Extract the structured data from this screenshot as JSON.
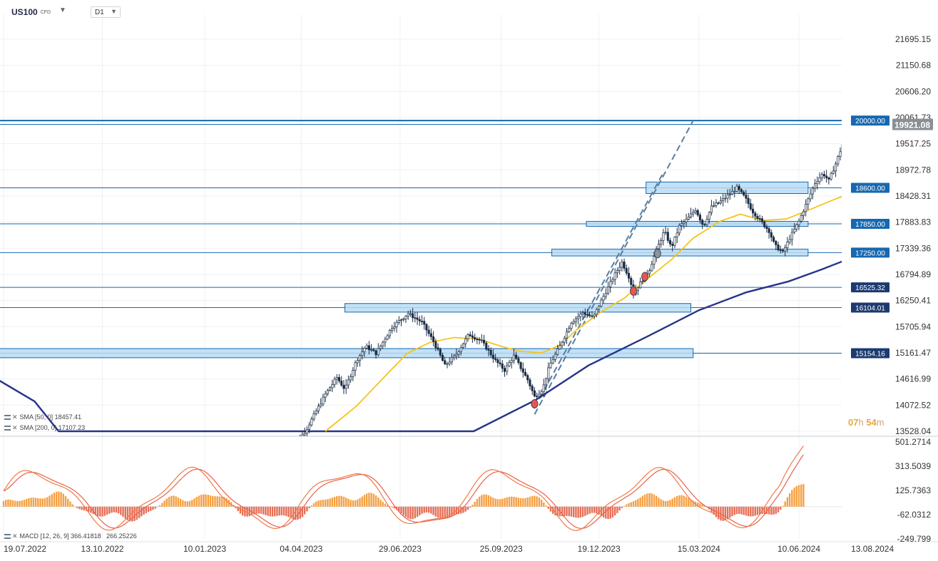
{
  "header": {
    "symbol": "US100",
    "symbol_type": "CFD",
    "timeframe": "D1"
  },
  "indicators": {
    "sma50": {
      "label": "SMA [50, 0]",
      "value": "18457.41",
      "color": "#f5c518"
    },
    "sma200": {
      "label": "SMA [200, 0]",
      "value": "17107.23",
      "color": "#26348b"
    },
    "macd": {
      "label": "MACD [12, 26, 9]",
      "value1": "366.41818",
      "value2": "266.25226"
    }
  },
  "countdown": {
    "hours": "07",
    "h_unit": "h",
    "minutes": "54",
    "m_unit": "m"
  },
  "colors": {
    "candle": "#1b2c44",
    "level_line": "#1668b0",
    "zone_fill": "#b9dcf4",
    "zone_stroke": "#1668b0",
    "tag_blue": "#1668b0",
    "tag_navy": "#1d3a70",
    "current_tag": "#8a8f96",
    "macd_pos": "#f5a043",
    "macd_neg": "#e66f56",
    "macd_line": "#f07a44",
    "signal_line": "#e86050",
    "channel": "#5a7ea0"
  },
  "chart_data": {
    "type": "candlestick",
    "instrument": "US100",
    "timeframe": "D1",
    "x_ticks": [
      "19.07.2022",
      "13.10.2022",
      "10.01.2023",
      "04.04.2023",
      "29.06.2023",
      "25.09.2023",
      "19.12.2023",
      "15.03.2024",
      "10.06.2024",
      "13.08.2024"
    ],
    "y_ticks": [
      "21695.15",
      "21150.68",
      "20606.20",
      "20061.73",
      "19517.25",
      "18972.78",
      "18428.31",
      "17883.83",
      "17339.36",
      "16794.89",
      "16250.41",
      "15705.94",
      "15161.47",
      "14616.99",
      "14072.52",
      "13528.04"
    ],
    "ylim": [
      13528.04,
      21695.15
    ],
    "current_price": "19921.08",
    "level_tags": [
      {
        "label": "20000.00",
        "value": 20000.0,
        "style": "blue"
      },
      {
        "label": "18600.00",
        "value": 18600.0,
        "style": "blue"
      },
      {
        "label": "17850.00",
        "value": 17850.0,
        "style": "blue"
      },
      {
        "label": "17250.00",
        "value": 17250.0,
        "style": "blue"
      },
      {
        "label": "16525.32",
        "value": 16525.32,
        "style": "navy"
      },
      {
        "label": "16104.01",
        "value": 16104.01,
        "style": "navy"
      },
      {
        "label": "15154.16",
        "value": 15154.16,
        "style": "navy"
      }
    ],
    "zones": [
      {
        "from": "2024-01-29",
        "to": "2024-06-18",
        "low": 18480,
        "high": 18720
      },
      {
        "from": "2023-12-08",
        "to": "2024-06-18",
        "low": 17800,
        "high": 17900
      },
      {
        "from": "2023-11-08",
        "to": "2024-06-18",
        "low": 17180,
        "high": 17320
      },
      {
        "from": "2023-05-12",
        "to": "2024-03-08",
        "low": 16010,
        "high": 16190
      },
      {
        "from": "2022-06-15",
        "to": "2024-03-10",
        "low": 15060,
        "high": 15250
      }
    ],
    "price_path": [
      [
        "2023-03-24",
        13050
      ],
      [
        "2023-04-08",
        13550
      ],
      [
        "2023-04-25",
        14300
      ],
      [
        "2023-05-05",
        14650
      ],
      [
        "2023-05-12",
        14400
      ],
      [
        "2023-05-22",
        15000
      ],
      [
        "2023-05-30",
        15300
      ],
      [
        "2023-06-08",
        15150
      ],
      [
        "2023-06-22",
        15700
      ],
      [
        "2023-07-06",
        15980
      ],
      [
        "2023-07-18",
        15800
      ],
      [
        "2023-07-28",
        15400
      ],
      [
        "2023-08-07",
        14900
      ],
      [
        "2023-08-16",
        15100
      ],
      [
        "2023-08-28",
        15550
      ],
      [
        "2023-09-08",
        15400
      ],
      [
        "2023-09-20",
        15000
      ],
      [
        "2023-09-28",
        14800
      ],
      [
        "2023-10-06",
        15100
      ],
      [
        "2023-10-18",
        14600
      ],
      [
        "2023-10-24",
        14250
      ],
      [
        "2023-10-31",
        14400
      ],
      [
        "2023-11-06",
        14900
      ],
      [
        "2023-11-15",
        15300
      ],
      [
        "2023-11-25",
        15800
      ],
      [
        "2023-12-05",
        16000
      ],
      [
        "2023-12-14",
        15900
      ],
      [
        "2023-12-20",
        16200
      ],
      [
        "2024-01-02",
        16800
      ],
      [
        "2024-01-08",
        17050
      ],
      [
        "2024-01-15",
        16700
      ],
      [
        "2024-01-18",
        16400
      ],
      [
        "2024-01-25",
        16650
      ],
      [
        "2024-02-01",
        16900
      ],
      [
        "2024-02-07",
        17300
      ],
      [
        "2024-02-14",
        17700
      ],
      [
        "2024-02-20",
        17350
      ],
      [
        "2024-02-27",
        17800
      ],
      [
        "2024-03-05",
        17950
      ],
      [
        "2024-03-12",
        18150
      ],
      [
        "2024-03-19",
        17800
      ],
      [
        "2024-03-26",
        18200
      ],
      [
        "2024-04-02",
        18300
      ],
      [
        "2024-04-10",
        18450
      ],
      [
        "2024-04-17",
        18600
      ],
      [
        "2024-04-24",
        18400
      ],
      [
        "2024-05-01",
        18100
      ],
      [
        "2024-05-08",
        17900
      ],
      [
        "2024-05-15",
        17700
      ],
      [
        "2024-05-20",
        17400
      ],
      [
        "2024-05-27",
        17250
      ],
      [
        "2024-06-03",
        17600
      ],
      [
        "2024-06-10",
        17900
      ],
      [
        "2024-06-17",
        18300
      ],
      [
        "2024-06-24",
        18700
      ],
      [
        "2024-07-01",
        18900
      ],
      [
        "2024-07-06",
        18750
      ],
      [
        "2024-07-12",
        19100
      ],
      [
        "2024-07-18",
        19500
      ],
      [
        "2024-07-22",
        19921.08
      ]
    ],
    "sma50": [
      [
        "2023-04-25",
        13528
      ],
      [
        "2023-05-22",
        14050
      ],
      [
        "2023-06-15",
        14650
      ],
      [
        "2023-07-05",
        15150
      ],
      [
        "2023-07-25",
        15380
      ],
      [
        "2023-08-15",
        15480
      ],
      [
        "2023-09-05",
        15450
      ],
      [
        "2023-09-25",
        15300
      ],
      [
        "2023-10-10",
        15200
      ],
      [
        "2023-10-30",
        15160
      ],
      [
        "2023-11-15",
        15320
      ],
      [
        "2023-11-30",
        15650
      ],
      [
        "2023-12-20",
        16000
      ],
      [
        "2024-01-10",
        16300
      ],
      [
        "2024-01-30",
        16700
      ],
      [
        "2024-02-20",
        17100
      ],
      [
        "2024-03-10",
        17550
      ],
      [
        "2024-04-02",
        17900
      ],
      [
        "2024-04-20",
        18050
      ],
      [
        "2024-05-10",
        17920
      ],
      [
        "2024-05-30",
        17950
      ],
      [
        "2024-06-20",
        18150
      ],
      [
        "2024-07-10",
        18350
      ],
      [
        "2024-07-22",
        18457.41
      ]
    ],
    "sma200": [
      [
        "2022-06-30",
        14800
      ],
      [
        "2022-08-15",
        14150
      ],
      [
        "2022-09-05",
        13528
      ],
      [
        "2023-09-01",
        13528
      ],
      [
        "2023-10-25",
        14180
      ],
      [
        "2023-12-10",
        14900
      ],
      [
        "2024-01-30",
        15500
      ],
      [
        "2024-03-15",
        16050
      ],
      [
        "2024-04-25",
        16420
      ],
      [
        "2024-06-01",
        16650
      ],
      [
        "2024-06-30",
        16900
      ],
      [
        "2024-07-22",
        17107.23
      ]
    ],
    "channel_lines": [
      {
        "from": [
          "2023-10-24",
          13880
        ],
        "to": [
          "2024-03-10",
          20000
        ]
      },
      {
        "from": [
          "2023-10-24",
          14020
        ],
        "to": [
          "2024-02-12",
          18870
        ]
      }
    ],
    "swing_markers": [
      {
        "date": "2023-10-24",
        "value": 14100,
        "color": "#e85555"
      },
      {
        "date": "2024-01-18",
        "value": 16450,
        "color": "#e85555"
      },
      {
        "date": "2024-01-28",
        "value": 16750,
        "color": "#e85555"
      },
      {
        "date": "2024-02-08",
        "value": 17230,
        "color": "#8895a8"
      }
    ],
    "macd": {
      "y_ticks": [
        "501.2714",
        "313.5039",
        "125.7363",
        "-62.0312",
        "-249.799"
      ],
      "ylim": [
        -249.799,
        501.2714
      ],
      "last_macd": "366.41818",
      "last_signal": "266.25226"
    }
  }
}
